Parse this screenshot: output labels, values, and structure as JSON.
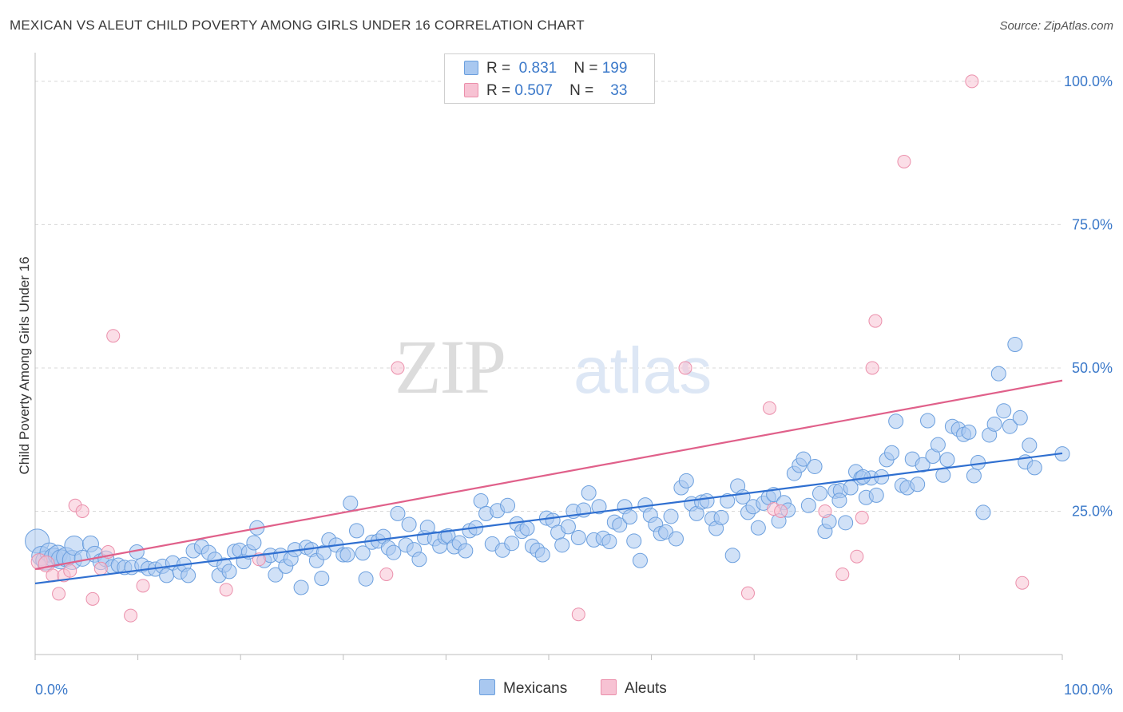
{
  "title": "MEXICAN VS ALEUT CHILD POVERTY AMONG GIRLS UNDER 16 CORRELATION CHART",
  "source": "Source: ZipAtlas.com",
  "watermark": {
    "zip": "ZIP",
    "atlas": "atlas"
  },
  "legend": {
    "rows": [
      {
        "r_label": "R =",
        "r_value": "0.831",
        "n_label": "N =",
        "n_value": "199"
      },
      {
        "r_label": "R =",
        "r_value": "0.507",
        "n_label": "N =",
        "n_value": "33"
      }
    ]
  },
  "bottom_legend": {
    "mexicans": "Mexicans",
    "aleuts": "Aleuts"
  },
  "colors": {
    "mexicans_fill": "#a9c8f0",
    "mexicans_stroke": "#6b9fde",
    "mexicans_line": "#2f6fd0",
    "aleuts_fill": "#f7c2d3",
    "aleuts_stroke": "#eb8fab",
    "aleuts_line": "#e0608a",
    "tick_text": "#3a78c9",
    "grid": "#d8d8d8"
  },
  "chart_data": {
    "type": "scatter",
    "title": "MEXICAN VS ALEUT CHILD POVERTY AMONG GIRLS UNDER 16 CORRELATION CHART",
    "xlabel": "",
    "ylabel": "Child Poverty Among Girls Under 16",
    "xlim": [
      0,
      100
    ],
    "ylim": [
      0,
      105
    ],
    "x_tick_labels": [
      "0.0%",
      "100.0%"
    ],
    "y_ticks": [
      25,
      50,
      75,
      100
    ],
    "y_tick_labels": [
      "25.0%",
      "50.0%",
      "75.0%",
      "100.0%"
    ],
    "grid": true,
    "legend_placement": "top-center",
    "series": [
      {
        "name": "Mexicans",
        "R": 0.831,
        "N": 199,
        "trend": [
          [
            0,
            12.4
          ],
          [
            100,
            35.1
          ]
        ],
        "points": [
          [
            0.2,
            19.8
          ],
          [
            0.6,
            17.2
          ],
          [
            1.0,
            16.4
          ],
          [
            1.4,
            17.8
          ],
          [
            1.8,
            16.9
          ],
          [
            2.2,
            17.4
          ],
          [
            2.5,
            16.6
          ],
          [
            3.0,
            17.0
          ],
          [
            3.6,
            16.5
          ],
          [
            3.8,
            19.0
          ],
          [
            4.6,
            16.8
          ],
          [
            5.4,
            19.3
          ],
          [
            5.8,
            17.5
          ],
          [
            6.4,
            16.2
          ],
          [
            6.9,
            16.7
          ],
          [
            7.5,
            15.3
          ],
          [
            8.1,
            15.6
          ],
          [
            8.7,
            15.2
          ],
          [
            9.4,
            15.2
          ],
          [
            9.9,
            17.9
          ],
          [
            10.4,
            15.6
          ],
          [
            11.0,
            15.0
          ],
          [
            11.7,
            14.9
          ],
          [
            12.4,
            15.4
          ],
          [
            12.8,
            13.8
          ],
          [
            13.4,
            16.0
          ],
          [
            14.1,
            14.4
          ],
          [
            14.5,
            15.7
          ],
          [
            14.9,
            13.8
          ],
          [
            15.4,
            18.1
          ],
          [
            16.2,
            18.8
          ],
          [
            16.9,
            17.8
          ],
          [
            17.5,
            16.6
          ],
          [
            17.9,
            13.8
          ],
          [
            18.4,
            15.6
          ],
          [
            18.9,
            14.5
          ],
          [
            19.4,
            18.0
          ],
          [
            19.9,
            18.2
          ],
          [
            20.3,
            16.2
          ],
          [
            20.8,
            17.9
          ],
          [
            21.3,
            19.5
          ],
          [
            21.6,
            22.1
          ],
          [
            22.3,
            16.4
          ],
          [
            22.9,
            17.3
          ],
          [
            23.4,
            13.9
          ],
          [
            23.9,
            17.3
          ],
          [
            24.4,
            15.4
          ],
          [
            24.9,
            16.7
          ],
          [
            25.3,
            18.3
          ],
          [
            25.9,
            11.7
          ],
          [
            26.4,
            18.7
          ],
          [
            26.9,
            18.3
          ],
          [
            27.4,
            16.4
          ],
          [
            27.9,
            13.3
          ],
          [
            28.1,
            17.8
          ],
          [
            28.6,
            20.0
          ],
          [
            29.3,
            19.1
          ],
          [
            30.0,
            17.4
          ],
          [
            30.4,
            17.4
          ],
          [
            30.7,
            26.4
          ],
          [
            31.3,
            21.6
          ],
          [
            31.9,
            17.7
          ],
          [
            32.2,
            13.2
          ],
          [
            32.8,
            19.6
          ],
          [
            33.4,
            19.8
          ],
          [
            33.9,
            20.6
          ],
          [
            34.4,
            18.6
          ],
          [
            34.9,
            17.8
          ],
          [
            35.3,
            24.6
          ],
          [
            36.1,
            19.1
          ],
          [
            36.4,
            22.7
          ],
          [
            36.9,
            18.3
          ],
          [
            37.4,
            16.6
          ],
          [
            37.9,
            20.4
          ],
          [
            38.2,
            22.2
          ],
          [
            38.9,
            20.2
          ],
          [
            39.4,
            18.9
          ],
          [
            39.9,
            20.5
          ],
          [
            40.2,
            20.7
          ],
          [
            40.8,
            18.8
          ],
          [
            41.3,
            19.5
          ],
          [
            41.9,
            18.1
          ],
          [
            42.3,
            21.6
          ],
          [
            42.9,
            22.1
          ],
          [
            43.4,
            26.8
          ],
          [
            43.9,
            24.6
          ],
          [
            44.5,
            19.3
          ],
          [
            45.0,
            25.1
          ],
          [
            45.5,
            18.2
          ],
          [
            46.0,
            26.0
          ],
          [
            46.4,
            19.4
          ],
          [
            46.9,
            22.8
          ],
          [
            47.4,
            21.5
          ],
          [
            47.9,
            22.0
          ],
          [
            48.4,
            18.9
          ],
          [
            48.9,
            18.2
          ],
          [
            49.4,
            17.4
          ],
          [
            49.8,
            23.8
          ],
          [
            50.4,
            23.4
          ],
          [
            50.9,
            21.3
          ],
          [
            51.3,
            19.1
          ],
          [
            51.9,
            22.3
          ],
          [
            52.4,
            25.0
          ],
          [
            52.9,
            20.4
          ],
          [
            53.4,
            25.2
          ],
          [
            53.9,
            28.2
          ],
          [
            54.4,
            20.0
          ],
          [
            54.9,
            25.8
          ],
          [
            55.3,
            20.3
          ],
          [
            55.9,
            19.7
          ],
          [
            56.4,
            23.1
          ],
          [
            56.9,
            22.6
          ],
          [
            57.4,
            25.8
          ],
          [
            57.9,
            24.0
          ],
          [
            58.3,
            19.8
          ],
          [
            58.9,
            16.4
          ],
          [
            59.4,
            26.1
          ],
          [
            59.9,
            24.3
          ],
          [
            60.4,
            22.7
          ],
          [
            60.9,
            21.1
          ],
          [
            61.4,
            21.4
          ],
          [
            61.9,
            24.1
          ],
          [
            62.4,
            20.2
          ],
          [
            62.9,
            29.1
          ],
          [
            63.4,
            30.3
          ],
          [
            63.9,
            26.3
          ],
          [
            64.4,
            24.6
          ],
          [
            64.9,
            26.6
          ],
          [
            65.4,
            26.8
          ],
          [
            65.9,
            23.7
          ],
          [
            66.3,
            22.0
          ],
          [
            66.8,
            23.9
          ],
          [
            67.4,
            26.8
          ],
          [
            67.9,
            17.3
          ],
          [
            68.4,
            29.4
          ],
          [
            68.9,
            27.5
          ],
          [
            69.4,
            24.8
          ],
          [
            69.9,
            25.8
          ],
          [
            70.4,
            22.1
          ],
          [
            70.9,
            26.4
          ],
          [
            71.4,
            27.4
          ],
          [
            71.9,
            27.9
          ],
          [
            72.4,
            23.3
          ],
          [
            72.9,
            26.5
          ],
          [
            73.3,
            25.2
          ],
          [
            73.9,
            31.6
          ],
          [
            74.4,
            33.0
          ],
          [
            74.8,
            34.1
          ],
          [
            75.3,
            26.0
          ],
          [
            75.9,
            32.8
          ],
          [
            76.4,
            28.1
          ],
          [
            76.9,
            21.5
          ],
          [
            77.3,
            23.2
          ],
          [
            77.9,
            28.5
          ],
          [
            78.4,
            28.6
          ],
          [
            78.9,
            23.0
          ],
          [
            79.4,
            29.1
          ],
          [
            79.9,
            31.9
          ],
          [
            80.4,
            30.8
          ],
          [
            80.9,
            27.4
          ],
          [
            81.4,
            30.8
          ],
          [
            81.9,
            27.8
          ],
          [
            82.4,
            31.0
          ],
          [
            82.9,
            34.0
          ],
          [
            83.4,
            35.2
          ],
          [
            83.8,
            40.7
          ],
          [
            84.4,
            29.5
          ],
          [
            84.9,
            29.1
          ],
          [
            85.4,
            34.1
          ],
          [
            85.9,
            29.7
          ],
          [
            86.4,
            33.1
          ],
          [
            86.9,
            40.8
          ],
          [
            87.4,
            34.6
          ],
          [
            87.9,
            36.6
          ],
          [
            88.4,
            31.3
          ],
          [
            88.8,
            34.0
          ],
          [
            89.3,
            39.8
          ],
          [
            89.9,
            39.3
          ],
          [
            90.4,
            38.4
          ],
          [
            90.9,
            38.8
          ],
          [
            91.4,
            31.2
          ],
          [
            91.8,
            33.5
          ],
          [
            92.3,
            24.8
          ],
          [
            92.9,
            38.3
          ],
          [
            93.4,
            40.2
          ],
          [
            93.8,
            49.0
          ],
          [
            94.3,
            42.5
          ],
          [
            94.9,
            39.8
          ],
          [
            95.4,
            54.1
          ],
          [
            95.9,
            41.3
          ],
          [
            96.4,
            33.6
          ],
          [
            96.8,
            36.5
          ],
          [
            97.3,
            32.6
          ],
          [
            100.0,
            35.0
          ],
          [
            80.6,
            31.0
          ],
          [
            78.3,
            26.9
          ]
        ]
      },
      {
        "name": "Aleuts",
        "R": 0.507,
        "N": 33,
        "trend": [
          [
            0,
            14.9
          ],
          [
            100,
            47.8
          ]
        ],
        "points": [
          [
            0.4,
            16.2
          ],
          [
            1.1,
            15.8
          ],
          [
            1.7,
            13.8
          ],
          [
            2.3,
            10.6
          ],
          [
            2.8,
            13.8
          ],
          [
            3.4,
            14.6
          ],
          [
            3.9,
            26.0
          ],
          [
            4.6,
            25.0
          ],
          [
            5.6,
            9.7
          ],
          [
            6.4,
            15.0
          ],
          [
            7.1,
            17.9
          ],
          [
            7.6,
            55.6
          ],
          [
            9.3,
            6.8
          ],
          [
            10.5,
            12.0
          ],
          [
            18.6,
            11.3
          ],
          [
            21.8,
            16.6
          ],
          [
            34.2,
            14.0
          ],
          [
            35.3,
            50.0
          ],
          [
            52.9,
            7.0
          ],
          [
            63.3,
            50.0
          ],
          [
            69.4,
            10.7
          ],
          [
            71.5,
            43.0
          ],
          [
            71.9,
            25.4
          ],
          [
            72.6,
            25.0
          ],
          [
            76.9,
            25.0
          ],
          [
            80.0,
            17.1
          ],
          [
            80.5,
            23.9
          ],
          [
            81.5,
            50.0
          ],
          [
            81.8,
            58.2
          ],
          [
            84.6,
            86.0
          ],
          [
            91.2,
            100.0
          ],
          [
            96.1,
            12.5
          ],
          [
            78.6,
            14.0
          ]
        ]
      }
    ]
  }
}
